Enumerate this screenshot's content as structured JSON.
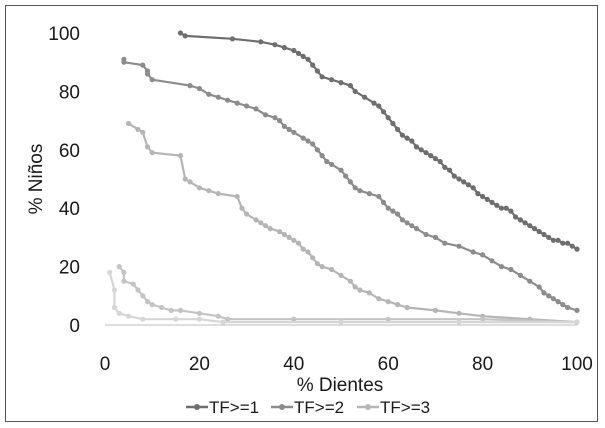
{
  "chart_data": {
    "type": "line",
    "title": "",
    "xlabel": "% Dientes",
    "ylabel": "% Niños",
    "xlim": [
      0,
      100
    ],
    "ylim": [
      0,
      100
    ],
    "xticks": [
      "0",
      "20",
      "40",
      "60",
      "80",
      "100"
    ],
    "yticks": [
      "0",
      "20",
      "40",
      "60",
      "80",
      "100"
    ],
    "grid": false,
    "legend_position": "bottom",
    "series": [
      {
        "name": "TF>=1",
        "color": "#6e6e6e",
        "points": [
          [
            16,
            100
          ],
          [
            17,
            99
          ],
          [
            27,
            98
          ],
          [
            33,
            97
          ],
          [
            36,
            96
          ],
          [
            38,
            95
          ],
          [
            40,
            94
          ],
          [
            41,
            93
          ],
          [
            42,
            92
          ],
          [
            43,
            91
          ],
          [
            44,
            89
          ],
          [
            45,
            87
          ],
          [
            46,
            85
          ],
          [
            48,
            84
          ],
          [
            50,
            83
          ],
          [
            52,
            82
          ],
          [
            53,
            80
          ],
          [
            55,
            78
          ],
          [
            57,
            76
          ],
          [
            58,
            75
          ],
          [
            59,
            73
          ],
          [
            60,
            71
          ],
          [
            61,
            69
          ],
          [
            62,
            67
          ],
          [
            63,
            65
          ],
          [
            64,
            64
          ],
          [
            65,
            63
          ],
          [
            66,
            61
          ],
          [
            67,
            60
          ],
          [
            68,
            59
          ],
          [
            69,
            58
          ],
          [
            70,
            57
          ],
          [
            71,
            56
          ],
          [
            72,
            54
          ],
          [
            73,
            53
          ],
          [
            74,
            51
          ],
          [
            75,
            50
          ],
          [
            76,
            49
          ],
          [
            77,
            48
          ],
          [
            78,
            47
          ],
          [
            79,
            45
          ],
          [
            80,
            44
          ],
          [
            81,
            43
          ],
          [
            82,
            42
          ],
          [
            83,
            41
          ],
          [
            84,
            40
          ],
          [
            85,
            40
          ],
          [
            86,
            39
          ],
          [
            87,
            37
          ],
          [
            88,
            36
          ],
          [
            89,
            35
          ],
          [
            90,
            34
          ],
          [
            91,
            33
          ],
          [
            92,
            32
          ],
          [
            93,
            31
          ],
          [
            94,
            30
          ],
          [
            95,
            29
          ],
          [
            96,
            29
          ],
          [
            97,
            28
          ],
          [
            98,
            28
          ],
          [
            99,
            27
          ],
          [
            100,
            26
          ]
        ]
      },
      {
        "name": "TF>=2",
        "color": "#8c8c8c",
        "points": [
          [
            4,
            91
          ],
          [
            4,
            90
          ],
          [
            8,
            89
          ],
          [
            9,
            87
          ],
          [
            9,
            86
          ],
          [
            10,
            84
          ],
          [
            18,
            82
          ],
          [
            20,
            81
          ],
          [
            22,
            79
          ],
          [
            24,
            78
          ],
          [
            26,
            77
          ],
          [
            28,
            76
          ],
          [
            30,
            75
          ],
          [
            32,
            74
          ],
          [
            34,
            72
          ],
          [
            36,
            71
          ],
          [
            37,
            70
          ],
          [
            38,
            68
          ],
          [
            39,
            67
          ],
          [
            40,
            66
          ],
          [
            42,
            64
          ],
          [
            43,
            63
          ],
          [
            44,
            62
          ],
          [
            45,
            60
          ],
          [
            46,
            58
          ],
          [
            47,
            56
          ],
          [
            48,
            55
          ],
          [
            50,
            53
          ],
          [
            51,
            51
          ],
          [
            52,
            49
          ],
          [
            53,
            47
          ],
          [
            54,
            46
          ],
          [
            56,
            45
          ],
          [
            58,
            44
          ],
          [
            59,
            42
          ],
          [
            60,
            40
          ],
          [
            61,
            39
          ],
          [
            62,
            38
          ],
          [
            63,
            36
          ],
          [
            64,
            35
          ],
          [
            65,
            34
          ],
          [
            66,
            33
          ],
          [
            68,
            31
          ],
          [
            70,
            30
          ],
          [
            72,
            28
          ],
          [
            75,
            27
          ],
          [
            78,
            25
          ],
          [
            80,
            24
          ],
          [
            82,
            22
          ],
          [
            84,
            20
          ],
          [
            86,
            19
          ],
          [
            88,
            17
          ],
          [
            90,
            15
          ],
          [
            92,
            13
          ],
          [
            93,
            11
          ],
          [
            94,
            10
          ],
          [
            95,
            9
          ],
          [
            96,
            8
          ],
          [
            97,
            7
          ],
          [
            98,
            6
          ],
          [
            100,
            5
          ]
        ]
      },
      {
        "name": "TF>=3",
        "color": "#b5b5b5",
        "points": [
          [
            5,
            69
          ],
          [
            7,
            67
          ],
          [
            8,
            66
          ],
          [
            9,
            61
          ],
          [
            10,
            59
          ],
          [
            16,
            58
          ],
          [
            17,
            50
          ],
          [
            18,
            49
          ],
          [
            20,
            47
          ],
          [
            22,
            46
          ],
          [
            24,
            45
          ],
          [
            28,
            44
          ],
          [
            29,
            40
          ],
          [
            30,
            38
          ],
          [
            32,
            36
          ],
          [
            33,
            35
          ],
          [
            34,
            34
          ],
          [
            35,
            33
          ],
          [
            37,
            32
          ],
          [
            38,
            31
          ],
          [
            39,
            30
          ],
          [
            40,
            29
          ],
          [
            41,
            28
          ],
          [
            42,
            26
          ],
          [
            43,
            25
          ],
          [
            44,
            23
          ],
          [
            45,
            21
          ],
          [
            46,
            20
          ],
          [
            48,
            19
          ],
          [
            50,
            17
          ],
          [
            52,
            15
          ],
          [
            53,
            13
          ],
          [
            54,
            12
          ],
          [
            56,
            11
          ],
          [
            58,
            9
          ],
          [
            60,
            8
          ],
          [
            62,
            7
          ],
          [
            64,
            6
          ],
          [
            70,
            5
          ],
          [
            75,
            4
          ],
          [
            80,
            3
          ],
          [
            90,
            2
          ],
          [
            100,
            1
          ]
        ]
      },
      {
        "name": "",
        "color": "#c4c4c4",
        "points": [
          [
            3,
            20
          ],
          [
            4,
            18
          ],
          [
            4,
            15
          ],
          [
            6,
            14
          ],
          [
            7,
            12
          ],
          [
            8,
            10
          ],
          [
            9,
            8
          ],
          [
            10,
            7
          ],
          [
            12,
            6
          ],
          [
            14,
            5
          ],
          [
            16,
            5
          ],
          [
            20,
            4
          ],
          [
            24,
            3
          ],
          [
            26,
            2
          ],
          [
            40,
            2
          ],
          [
            60,
            2
          ],
          [
            80,
            2
          ],
          [
            100,
            1
          ]
        ]
      },
      {
        "name": "",
        "color": "#d6d6d6",
        "points": [
          [
            1,
            18
          ],
          [
            2,
            12
          ],
          [
            2,
            6
          ],
          [
            3,
            4
          ],
          [
            5,
            3
          ],
          [
            8,
            2
          ],
          [
            15,
            2
          ],
          [
            20,
            2
          ],
          [
            25,
            1
          ],
          [
            50,
            1
          ],
          [
            75,
            1
          ],
          [
            100,
            1
          ]
        ]
      }
    ],
    "legend": [
      "TF>=1",
      "TF>=2",
      "TF>=3"
    ]
  }
}
